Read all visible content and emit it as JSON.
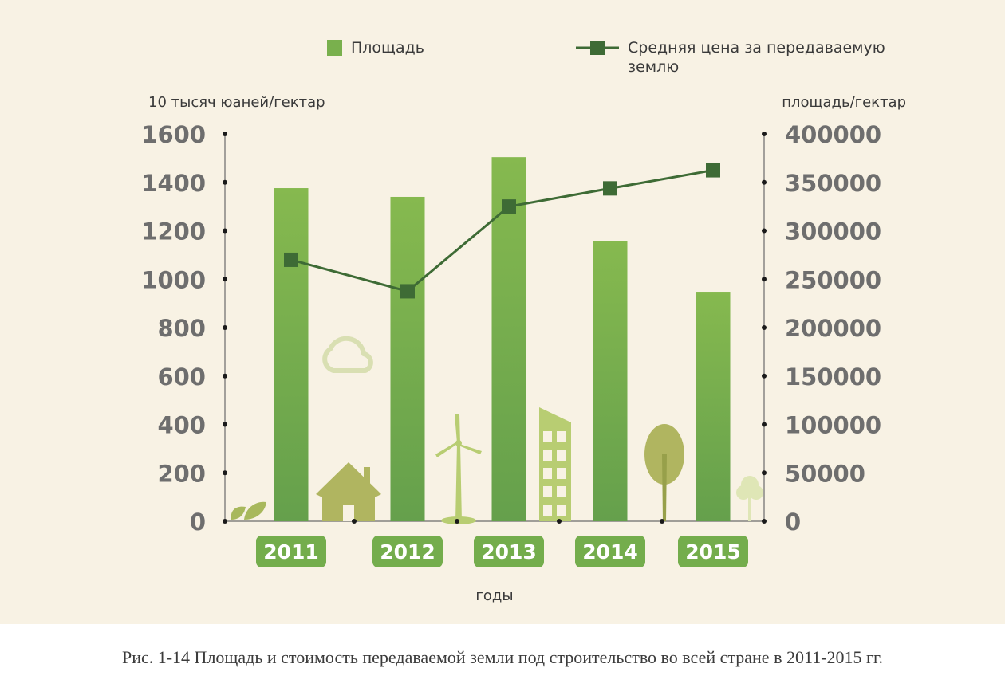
{
  "chart_data": {
    "type": "bar",
    "categories": [
      "2011",
      "2012",
      "2013",
      "2014",
      "2015"
    ],
    "series": [
      {
        "name": "Площадь",
        "type": "bar",
        "axis": "right",
        "values": [
          344000,
          335000,
          376000,
          289000,
          237000
        ],
        "color": "#79b04d"
      },
      {
        "name": "Средняя цена за передаваемую землю",
        "type": "line",
        "axis": "left",
        "values": [
          1080,
          950,
          1300,
          1375,
          1450
        ],
        "color": "#3e6b35"
      }
    ],
    "y_left": {
      "label": "10 тысяч юаней/гектар",
      "ticks": [
        "1600",
        "1400",
        "1200",
        "1000",
        "800",
        "600",
        "400",
        "200",
        "0"
      ]
    },
    "y_right": {
      "label": "площадь/гектар",
      "ticks": [
        "400000",
        "350000",
        "300000",
        "250000",
        "200000",
        "150000",
        "100000",
        "50000",
        "0"
      ]
    },
    "xlabel": "годы",
    "legend": {
      "bar_label": "Площадь",
      "line_label_line1": "Средняя цена за передаваемую",
      "line_label_line2": "землю",
      "placement": "top"
    }
  },
  "caption": "Рис. 1-14 Площадь и стоимость передаваемой земли под строительство во всей стране в 2011-2015 гг."
}
